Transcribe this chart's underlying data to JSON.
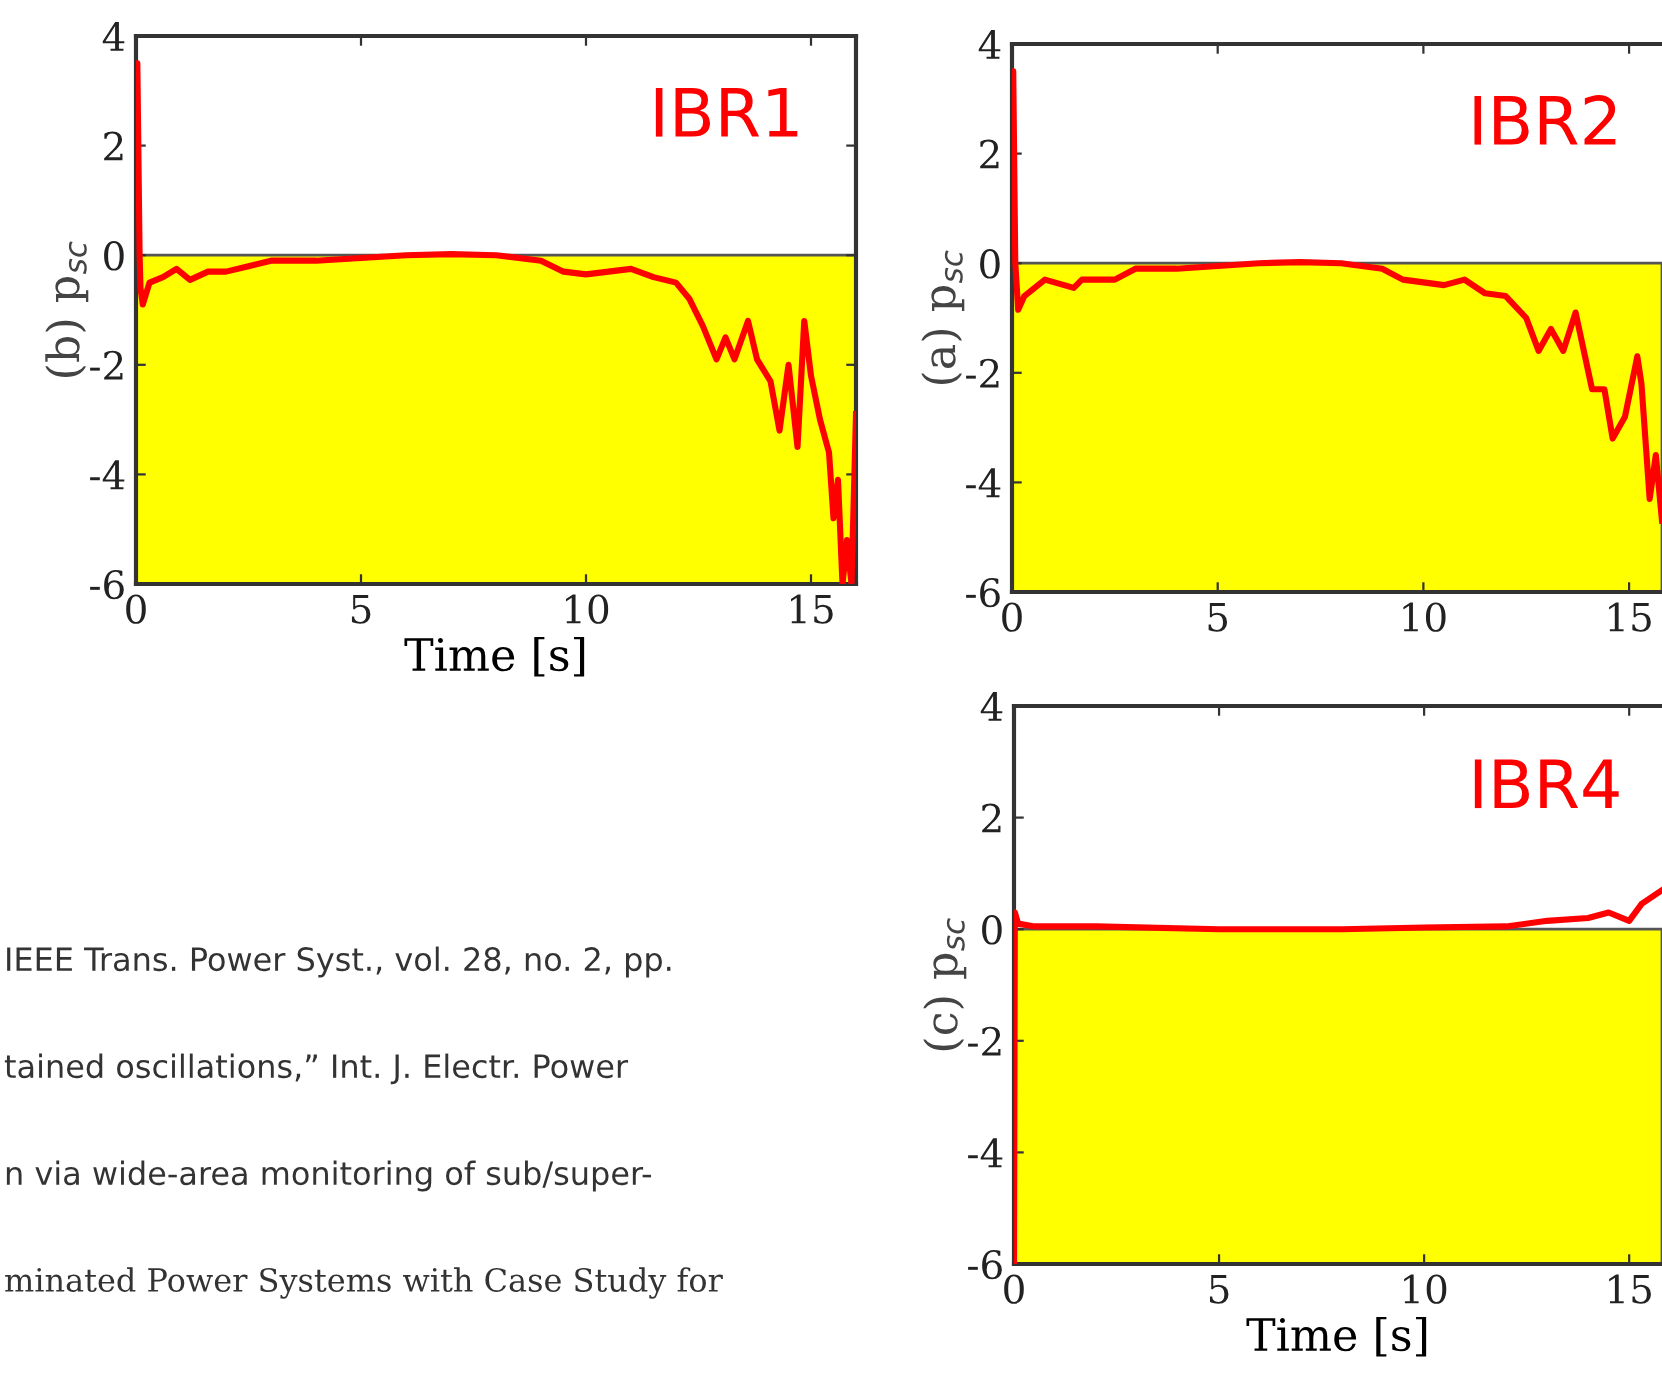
{
  "chart_data": [
    {
      "type": "line",
      "xlabel": "Time [s]",
      "ylabel": "(b) p$_{sc}$",
      "xlim": [
        0,
        16
      ],
      "ylim": [
        -6,
        4
      ],
      "xticks": [
        0,
        5,
        10,
        15
      ],
      "yticks": [
        -6,
        -4,
        -2,
        0,
        2,
        4
      ],
      "grid": false,
      "marker": "none",
      "line_style": "solid",
      "bands": [
        {
          "axis": "y",
          "from": -6,
          "to": 0,
          "color": "#ffff00"
        }
      ],
      "annotations": [
        "IBR1",
        "IEEE Trans. Power Syst., vol. 28, no. 2, pp.",
        "tained oscillations,” Int. J. Electr. Power",
        "n via wide-area monitoring of sub/super-",
        "minated Power Systems with Case Study for"
      ],
      "series": [
        {
          "color": "#ff0000",
          "x": [
            0,
            0.03,
            0.08,
            0.1,
            0.15,
            0.3,
            0.6,
            0.9,
            1.2,
            1.6,
            2,
            2.5,
            3,
            4,
            5,
            6,
            7,
            8,
            9,
            9.5,
            10,
            10.5,
            11,
            11.5,
            12,
            12.3,
            12.6,
            12.9,
            13.1,
            13.3,
            13.6,
            13.8,
            14.1,
            14.3,
            14.5,
            14.7,
            14.85,
            15.0,
            15.2,
            15.4,
            15.5,
            15.6,
            15.7,
            15.8,
            15.9,
            16.0
          ],
          "values": [
            2.2,
            3.5,
            0,
            -0.6,
            -0.9,
            -0.5,
            -0.4,
            -0.25,
            -0.45,
            -0.3,
            -0.3,
            -0.2,
            -0.1,
            -0.1,
            -0.05,
            0,
            0.02,
            0,
            -0.1,
            -0.3,
            -0.35,
            -0.3,
            -0.25,
            -0.4,
            -0.5,
            -0.8,
            -1.3,
            -1.9,
            -1.5,
            -1.9,
            -1.2,
            -1.9,
            -2.3,
            -3.2,
            -2.0,
            -3.5,
            -1.2,
            -2.2,
            -3.0,
            -3.6,
            -4.8,
            -4.1,
            -6.0,
            -5.2,
            -6.0,
            -2.9
          ]
        }
      ]
    },
    {
      "type": "line",
      "ylabel": "(a) p$_{sc}$",
      "xlim": [
        0,
        15.8
      ],
      "ylim": [
        -6,
        4
      ],
      "xticks": [
        0,
        5,
        10,
        15
      ],
      "yticks": [
        -6,
        -4,
        -2,
        0,
        2,
        4
      ],
      "grid": false,
      "marker": "none",
      "line_style": "solid",
      "bands": [
        {
          "axis": "y",
          "from": -6,
          "to": 0,
          "color": "#ffff00"
        }
      ],
      "annotations": [
        "IBR2"
      ],
      "series": [
        {
          "color": "#ff0000",
          "x": [
            0,
            0.03,
            0.08,
            0.15,
            0.3,
            0.8,
            1.5,
            1.7,
            2.5,
            3,
            4,
            5,
            6,
            7,
            8,
            9,
            9.5,
            10,
            10.5,
            11,
            11.5,
            12,
            12.5,
            12.8,
            13.1,
            13.4,
            13.7,
            14.1,
            14.4,
            14.6,
            14.9,
            15.2,
            15.3,
            15.5,
            15.65,
            15.8
          ],
          "values": [
            1.5,
            3.5,
            0,
            -0.85,
            -0.6,
            -0.3,
            -0.45,
            -0.3,
            -0.3,
            -0.1,
            -0.1,
            -0.05,
            0,
            0.02,
            0,
            -0.1,
            -0.3,
            -0.35,
            -0.4,
            -0.3,
            -0.55,
            -0.6,
            -1.0,
            -1.6,
            -1.2,
            -1.6,
            -0.9,
            -2.3,
            -2.3,
            -3.2,
            -2.8,
            -1.7,
            -2.2,
            -4.3,
            -3.5,
            -4.7
          ]
        }
      ]
    },
    {
      "type": "line",
      "xlabel": "Time [s]",
      "ylabel": "(c) p$_{sc}$",
      "xlim": [
        0,
        15.8
      ],
      "ylim": [
        -6,
        4
      ],
      "xticks": [
        0,
        5,
        10,
        15
      ],
      "yticks": [
        -6,
        -4,
        -2,
        0,
        2,
        4
      ],
      "grid": false,
      "marker": "none",
      "line_style": "solid",
      "bands": [
        {
          "axis": "y",
          "from": -6,
          "to": 0,
          "color": "#ffff00"
        }
      ],
      "annotations": [
        "IBR4"
      ],
      "series": [
        {
          "color": "#ff0000",
          "x": [
            0,
            0.02,
            0.1,
            0.5,
            2,
            5,
            8,
            10,
            12,
            13,
            14,
            14.5,
            15,
            15.3,
            15.8
          ],
          "values": [
            -6,
            0.3,
            0.1,
            0.05,
            0.05,
            0,
            0,
            0.03,
            0.05,
            0.15,
            0.2,
            0.3,
            0.15,
            0.45,
            0.7
          ]
        }
      ]
    }
  ]
}
